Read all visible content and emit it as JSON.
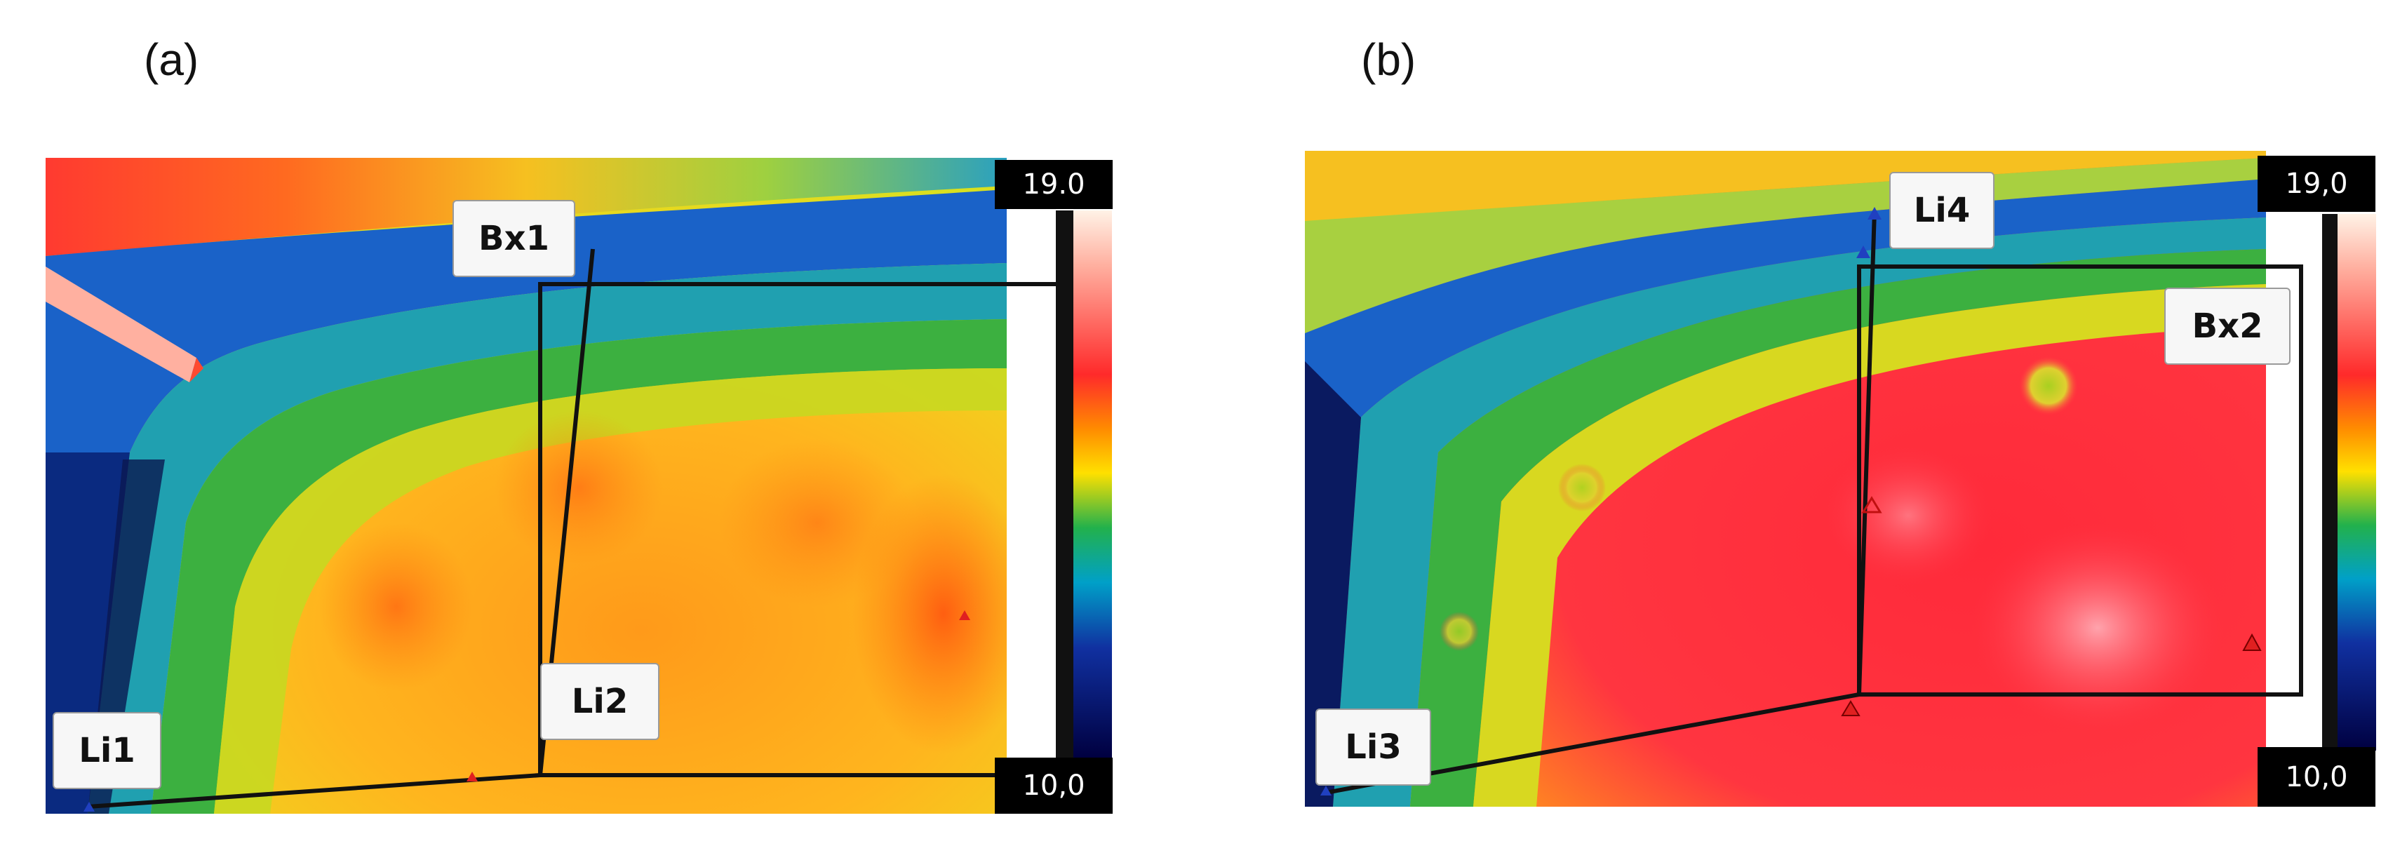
{
  "panels": [
    {
      "label": "(a)",
      "scale_max": "19.0",
      "scale_min": "10,0",
      "markers": {
        "box": "Bx1",
        "line_a": "Li1",
        "line_b": "Li2"
      }
    },
    {
      "label": "(b)",
      "scale_max": "19,0",
      "scale_min": "10,0",
      "markers": {
        "box": "Bx2",
        "line_a": "Li3",
        "line_b": "Li4"
      }
    }
  ],
  "colors": {
    "scale_gradient": [
      "#fff2e6",
      "#ffb0a0",
      "#ff2a2a",
      "#ff8c00",
      "#ffe000",
      "#22b14c",
      "#00a0c8",
      "#1030a0",
      "#000040"
    ],
    "hot": "#ff3030",
    "warm": "#ffa020",
    "mid": "#e8e020",
    "cool": "#20a040",
    "cold": "#1060c0"
  }
}
